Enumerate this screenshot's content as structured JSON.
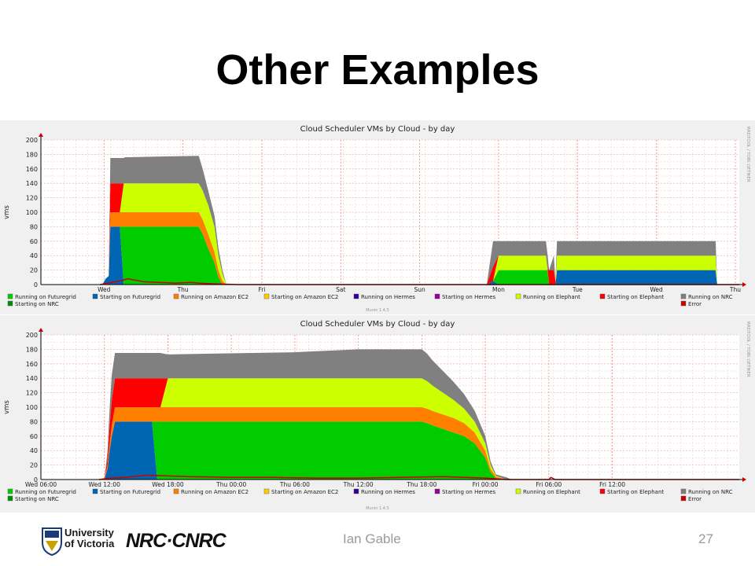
{
  "slide": {
    "title": "Other Examples",
    "footer_author": "Ian Gable",
    "page_number": "27",
    "uvic_logo_text": [
      "University",
      "of Victoria"
    ],
    "nrc_logo_text": "NRC·CNRC"
  },
  "colors": {
    "panel_bg": "#f0f0f0",
    "plot_bg": "#ffffff",
    "grid": "#f4b8b8",
    "running_futuregrid": "#00cc00",
    "starting_futuregrid": "#0066b3",
    "running_amazon_ec2": "#ff8000",
    "starting_amazon_ec2": "#ffcc00",
    "running_hermes": "#330099",
    "starting_hermes": "#990099",
    "running_elephant": "#ccff00",
    "starting_elephant": "#ff0000",
    "running_nrc": "#808080",
    "starting_nrc": "#008f00",
    "error": "#cc0000"
  },
  "chart_data": [
    {
      "type": "area",
      "title": "Cloud Scheduler VMs by Cloud - by day",
      "ylabel": "vms",
      "side_label": "RRDTOOL / TOBI OETIKER",
      "footer_label": "Munin 1.4.5",
      "ylim": [
        0,
        200
      ],
      "yticks": [
        "0",
        "20",
        "40",
        "60",
        "80",
        "100",
        "120",
        "140",
        "160",
        "180",
        "200"
      ],
      "xlim": [
        0,
        8.85
      ],
      "xticks": [
        {
          "label": "Wed",
          "x": 0.8
        },
        {
          "label": "Thu",
          "x": 1.8
        },
        {
          "label": "Fri",
          "x": 2.8
        },
        {
          "label": "Sat",
          "x": 3.8
        },
        {
          "label": "Sun",
          "x": 4.8
        },
        {
          "label": "Mon",
          "x": 5.8
        },
        {
          "label": "Tue",
          "x": 6.8
        },
        {
          "label": "Wed",
          "x": 7.8
        },
        {
          "label": "Thu",
          "x": 8.8
        }
      ],
      "series_order": [
        "starting_futuregrid",
        "running_futuregrid",
        "running_amazon_ec2",
        "running_elephant",
        "starting_elephant",
        "running_nrc"
      ],
      "x": [
        0.78,
        0.82,
        0.86,
        0.88,
        0.92,
        1.0,
        1.05,
        1.06,
        1.5,
        2.0,
        2.05,
        2.12,
        2.2,
        2.25,
        2.3,
        2.35,
        5.6,
        5.65,
        5.73,
        5.8,
        6.25,
        6.4,
        6.42,
        6.44,
        6.5,
        6.52,
        6.54,
        6.6,
        7.0,
        7.5,
        7.8,
        8.0,
        8.1,
        8.2,
        8.3,
        8.5,
        8.55,
        8.57
      ],
      "series": {
        "starting_futuregrid": [
          0,
          8,
          12,
          80,
          80,
          80,
          0,
          0,
          0,
          0,
          0,
          0,
          0,
          0,
          0,
          0,
          0,
          0,
          5,
          0,
          0,
          0,
          0,
          0,
          0,
          0,
          20,
          20,
          20,
          20,
          20,
          20,
          20,
          20,
          20,
          20,
          20,
          0
        ],
        "running_futuregrid": [
          0,
          0,
          0,
          0,
          0,
          0,
          80,
          80,
          80,
          80,
          70,
          50,
          30,
          10,
          0,
          0,
          0,
          0,
          0,
          20,
          20,
          20,
          20,
          0,
          0,
          0,
          0,
          0,
          0,
          0,
          0,
          0,
          0,
          0,
          0,
          0,
          0,
          0
        ],
        "running_amazon_ec2": [
          0,
          0,
          0,
          20,
          20,
          20,
          20,
          20,
          20,
          20,
          20,
          20,
          15,
          10,
          5,
          0,
          0,
          0,
          0,
          0,
          0,
          0,
          0,
          0,
          0,
          0,
          0,
          0,
          0,
          0,
          0,
          0,
          0,
          0,
          0,
          0,
          0,
          0
        ],
        "running_elephant": [
          0,
          0,
          0,
          0,
          0,
          0,
          40,
          40,
          40,
          40,
          40,
          40,
          35,
          20,
          10,
          0,
          0,
          0,
          0,
          20,
          20,
          20,
          2,
          0,
          0,
          0,
          20,
          20,
          20,
          20,
          20,
          20,
          20,
          20,
          20,
          20,
          20,
          0
        ],
        "starting_elephant": [
          0,
          0,
          0,
          40,
          40,
          40,
          0,
          0,
          0,
          0,
          0,
          0,
          0,
          0,
          0,
          0,
          0,
          0,
          20,
          0,
          0,
          0,
          0,
          20,
          20,
          5,
          0,
          0,
          0,
          0,
          0,
          0,
          0,
          0,
          0,
          0,
          0,
          0
        ],
        "running_nrc": [
          0,
          0,
          0,
          35,
          35,
          35,
          35,
          36,
          37,
          38,
          30,
          20,
          15,
          10,
          5,
          0,
          0,
          0,
          35,
          20,
          20,
          20,
          20,
          0,
          20,
          0,
          20,
          20,
          20,
          20,
          20,
          20,
          20,
          20,
          20,
          20,
          20,
          0
        ]
      },
      "error_line": {
        "x": [
          0.75,
          0.9,
          1.0,
          1.1,
          1.3,
          1.5,
          1.7,
          1.9,
          2.0,
          2.2,
          2.5,
          5.6,
          5.8,
          6.6,
          8.85
        ],
        "y": [
          0,
          3,
          5,
          8,
          4,
          3,
          2,
          3,
          2,
          1,
          0,
          0,
          0,
          0,
          0
        ]
      },
      "legend": [
        {
          "label": "Running on Futuregrid",
          "key": "running_futuregrid"
        },
        {
          "label": "Starting on Futuregrid",
          "key": "starting_futuregrid"
        },
        {
          "label": "Running on Amazon EC2",
          "key": "running_amazon_ec2"
        },
        {
          "label": "Starting on Amazon EC2",
          "key": "starting_amazon_ec2"
        },
        {
          "label": "Running on Hermes",
          "key": "running_hermes"
        },
        {
          "label": "Starting on Hermes",
          "key": "starting_hermes"
        },
        {
          "label": "Running on Elephant",
          "key": "running_elephant"
        },
        {
          "label": "Starting on Elephant",
          "key": "starting_elephant"
        },
        {
          "label": "Running on NRC",
          "key": "running_nrc"
        },
        {
          "label": "Starting on NRC",
          "key": "starting_nrc"
        },
        {
          "label": "Error",
          "key": "error"
        }
      ]
    },
    {
      "type": "area",
      "title": "Cloud Scheduler VMs by Cloud - by day",
      "ylabel": "vms",
      "side_label": "RRDTOOL / TOBI OETIKER",
      "footer_label": "Munin 1.4.5",
      "ylim": [
        0,
        200
      ],
      "yticks": [
        "0",
        "20",
        "40",
        "60",
        "80",
        "100",
        "120",
        "140",
        "160",
        "180",
        "200"
      ],
      "xlim": [
        0,
        66
      ],
      "xticks": [
        {
          "label": "Wed 06:00",
          "x": 0
        },
        {
          "label": "Wed 12:00",
          "x": 6
        },
        {
          "label": "Wed 18:00",
          "x": 12
        },
        {
          "label": "Thu 00:00",
          "x": 18
        },
        {
          "label": "Thu 06:00",
          "x": 24
        },
        {
          "label": "Thu 12:00",
          "x": 30
        },
        {
          "label": "Thu 18:00",
          "x": 36
        },
        {
          "label": "Fri 00:00",
          "x": 42
        },
        {
          "label": "Fri 06:00",
          "x": 48
        },
        {
          "label": "Fri 12:00",
          "x": 54
        }
      ],
      "series_order": [
        "starting_futuregrid",
        "running_futuregrid",
        "running_amazon_ec2",
        "running_elephant",
        "starting_elephant",
        "running_nrc"
      ],
      "x": [
        6.0,
        6.3,
        6.5,
        6.7,
        7.0,
        10.5,
        11.0,
        11.3,
        12.0,
        16.0,
        24.0,
        30.0,
        36.0,
        36.5,
        37.0,
        38.0,
        39.0,
        40.0,
        41.0,
        42.0,
        42.5,
        43.0,
        44.0,
        44.5,
        66.0
      ],
      "series": {
        "starting_futuregrid": [
          0,
          15,
          40,
          60,
          80,
          80,
          0,
          0,
          0,
          0,
          0,
          0,
          0,
          0,
          0,
          0,
          0,
          0,
          0,
          0,
          0,
          0,
          0,
          0,
          0
        ],
        "running_futuregrid": [
          0,
          0,
          0,
          0,
          0,
          0,
          80,
          80,
          80,
          80,
          80,
          80,
          80,
          78,
          75,
          70,
          65,
          60,
          50,
          30,
          10,
          2,
          0,
          0,
          0
        ],
        "running_amazon_ec2": [
          0,
          5,
          10,
          15,
          20,
          20,
          20,
          20,
          20,
          20,
          20,
          20,
          20,
          20,
          20,
          20,
          20,
          18,
          15,
          10,
          5,
          2,
          0,
          0,
          0
        ],
        "running_elephant": [
          0,
          0,
          0,
          0,
          0,
          0,
          0,
          0,
          40,
          40,
          40,
          40,
          40,
          38,
          35,
          30,
          25,
          20,
          15,
          10,
          5,
          1,
          0,
          0,
          0
        ],
        "starting_elephant": [
          0,
          10,
          25,
          35,
          40,
          40,
          40,
          40,
          0,
          0,
          0,
          0,
          0,
          0,
          0,
          0,
          0,
          0,
          0,
          0,
          0,
          0,
          0,
          0,
          0
        ],
        "running_nrc": [
          0,
          10,
          25,
          35,
          35,
          35,
          35,
          35,
          33,
          34,
          36,
          40,
          40,
          38,
          35,
          30,
          25,
          20,
          15,
          10,
          5,
          2,
          3,
          0,
          0
        ]
      },
      "error_line": {
        "x": [
          5.5,
          6.5,
          8.0,
          10.0,
          12.0,
          14.0,
          18.0,
          22.0,
          26.0,
          30.0,
          34.0,
          38.0,
          42.0,
          44.0,
          48.0,
          48.2,
          48.6,
          66.0
        ],
        "y": [
          0,
          2,
          3,
          6,
          5,
          4,
          3,
          3,
          2,
          2,
          3,
          4,
          2,
          0,
          0,
          3,
          0,
          0
        ]
      },
      "legend": [
        {
          "label": "Running on Futuregrid",
          "key": "running_futuregrid"
        },
        {
          "label": "Starting on Futuregrid",
          "key": "starting_futuregrid"
        },
        {
          "label": "Running on Amazon EC2",
          "key": "running_amazon_ec2"
        },
        {
          "label": "Starting on Amazon EC2",
          "key": "starting_amazon_ec2"
        },
        {
          "label": "Running on Hermes",
          "key": "running_hermes"
        },
        {
          "label": "Starting on Hermes",
          "key": "starting_hermes"
        },
        {
          "label": "Running on Elephant",
          "key": "running_elephant"
        },
        {
          "label": "Starting on Elephant",
          "key": "starting_elephant"
        },
        {
          "label": "Running on NRC",
          "key": "running_nrc"
        },
        {
          "label": "Starting on NRC",
          "key": "starting_nrc"
        },
        {
          "label": "Error",
          "key": "error"
        }
      ]
    }
  ]
}
